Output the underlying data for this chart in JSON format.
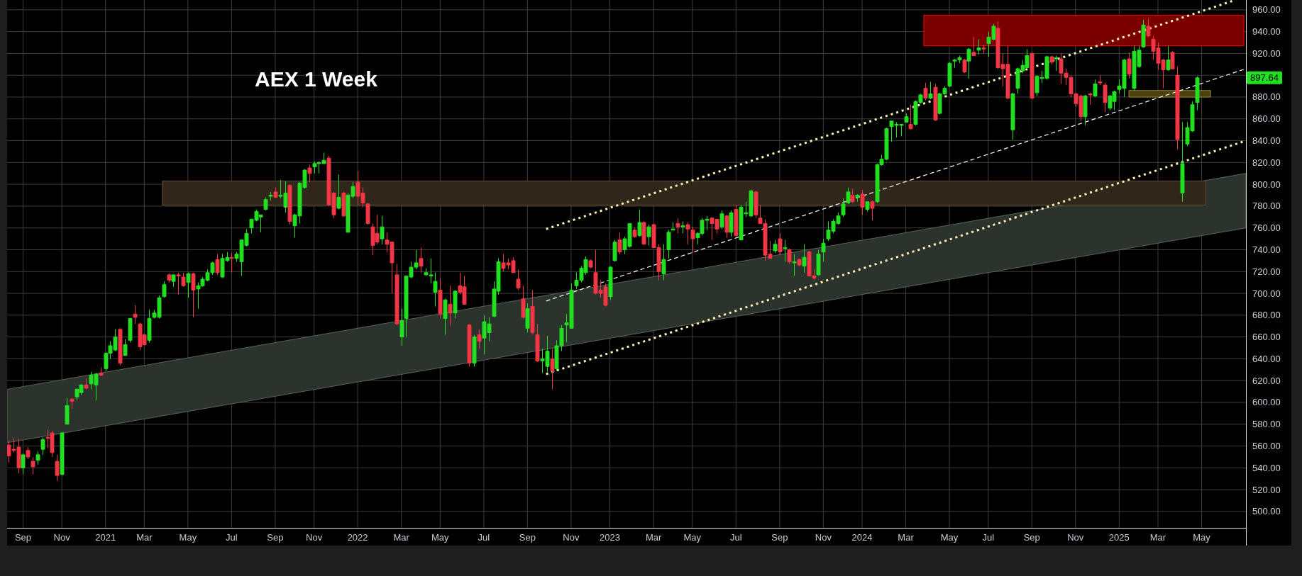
{
  "chart_data": {
    "type": "candlestick",
    "title": "AEX 1 Week",
    "x": [
      "2020-08-17",
      "2020-08-24",
      "2020-08-31",
      "2020-09-07",
      "2020-09-14",
      "2020-09-21",
      "2020-09-28",
      "2020-10-05",
      "2020-10-12",
      "2020-10-19",
      "2020-10-26",
      "2020-11-02",
      "2020-11-09",
      "2020-11-16",
      "2020-11-23",
      "2020-11-30",
      "2020-12-07",
      "2020-12-14",
      "2020-12-21",
      "2020-12-28",
      "2021-01-04",
      "2021-01-11",
      "2021-01-18",
      "2021-01-25",
      "2021-02-01",
      "2021-02-08",
      "2021-02-15",
      "2021-02-22",
      "2021-03-01",
      "2021-03-08",
      "2021-03-15",
      "2021-03-22",
      "2021-03-29",
      "2021-04-05",
      "2021-04-12",
      "2021-04-19",
      "2021-04-26",
      "2021-05-03",
      "2021-05-10",
      "2021-05-17",
      "2021-05-24",
      "2021-05-31",
      "2021-06-07",
      "2021-06-14",
      "2021-06-21",
      "2021-06-28",
      "2021-07-05",
      "2021-07-12",
      "2021-07-19",
      "2021-07-26",
      "2021-08-02",
      "2021-08-09",
      "2021-08-16",
      "2021-08-23",
      "2021-08-30",
      "2021-09-06",
      "2021-09-13",
      "2021-09-20",
      "2021-09-27",
      "2021-10-04",
      "2021-10-11",
      "2021-10-18",
      "2021-10-25",
      "2021-11-01",
      "2021-11-08",
      "2021-11-15",
      "2021-11-22",
      "2021-11-29",
      "2021-12-06",
      "2021-12-13",
      "2021-12-20",
      "2021-12-27",
      "2022-01-03",
      "2022-01-10",
      "2022-01-17",
      "2022-01-24",
      "2022-01-31",
      "2022-02-07",
      "2022-02-14",
      "2022-02-21",
      "2022-02-28",
      "2022-03-07",
      "2022-03-14",
      "2022-03-21",
      "2022-03-28",
      "2022-04-04",
      "2022-04-11",
      "2022-04-18",
      "2022-04-25",
      "2022-05-02",
      "2022-05-09",
      "2022-05-16",
      "2022-05-23",
      "2022-05-30",
      "2022-06-06",
      "2022-06-13",
      "2022-06-20",
      "2022-06-27",
      "2022-07-04",
      "2022-07-11",
      "2022-07-18",
      "2022-07-25",
      "2022-08-01",
      "2022-08-08",
      "2022-08-15",
      "2022-08-22",
      "2022-08-29",
      "2022-09-05",
      "2022-09-12",
      "2022-09-19",
      "2022-09-26",
      "2022-10-03",
      "2022-10-10",
      "2022-10-17",
      "2022-10-24",
      "2022-10-31",
      "2022-11-07",
      "2022-11-14",
      "2022-11-21",
      "2022-11-28",
      "2022-12-05",
      "2022-12-12",
      "2022-12-19",
      "2022-12-26",
      "2023-01-02",
      "2023-01-09",
      "2023-01-16",
      "2023-01-23",
      "2023-01-30",
      "2023-02-06",
      "2023-02-13",
      "2023-02-20",
      "2023-02-27",
      "2023-03-06",
      "2023-03-13",
      "2023-03-20",
      "2023-03-27",
      "2023-04-03",
      "2023-04-10",
      "2023-04-17",
      "2023-04-24",
      "2023-05-01",
      "2023-05-08",
      "2023-05-15",
      "2023-05-22",
      "2023-05-29",
      "2023-06-05",
      "2023-06-12",
      "2023-06-19",
      "2023-06-26",
      "2023-07-03",
      "2023-07-10",
      "2023-07-17",
      "2023-07-24",
      "2023-07-31",
      "2023-08-07",
      "2023-08-14",
      "2023-08-21",
      "2023-08-28",
      "2023-09-04",
      "2023-09-11",
      "2023-09-18",
      "2023-09-25",
      "2023-10-02",
      "2023-10-09",
      "2023-10-16",
      "2023-10-23",
      "2023-10-30",
      "2023-11-06",
      "2023-11-13",
      "2023-11-20",
      "2023-11-27",
      "2023-12-04",
      "2023-12-11",
      "2023-12-18",
      "2023-12-25",
      "2024-01-01",
      "2024-01-08",
      "2024-01-15",
      "2024-01-22",
      "2024-01-29",
      "2024-02-05",
      "2024-02-12",
      "2024-02-19",
      "2024-02-26",
      "2024-03-04",
      "2024-03-11",
      "2024-03-18",
      "2024-03-25",
      "2024-04-01",
      "2024-04-08",
      "2024-04-15",
      "2024-04-22",
      "2024-04-29",
      "2024-05-06",
      "2024-05-13",
      "2024-05-20",
      "2024-05-27",
      "2024-06-03",
      "2024-06-10",
      "2024-06-17",
      "2024-06-24",
      "2024-07-01",
      "2024-07-08",
      "2024-07-15",
      "2024-07-22",
      "2024-07-29",
      "2024-08-05",
      "2024-08-12",
      "2024-08-19",
      "2024-08-26",
      "2024-09-02",
      "2024-09-09",
      "2024-09-16",
      "2024-09-23",
      "2024-09-30",
      "2024-10-07",
      "2024-10-14",
      "2024-10-21",
      "2024-10-28",
      "2024-11-04",
      "2024-11-11",
      "2024-11-18",
      "2024-11-25",
      "2024-12-02",
      "2024-12-09",
      "2024-12-16",
      "2024-12-23",
      "2024-12-30",
      "2025-01-06",
      "2025-01-13",
      "2025-01-20",
      "2025-01-27",
      "2025-02-03",
      "2025-02-10",
      "2025-02-17",
      "2025-02-24",
      "2025-03-03",
      "2025-03-10",
      "2025-03-17",
      "2025-03-24",
      "2025-03-31",
      "2025-04-07",
      "2025-04-14",
      "2025-04-21",
      "2025-04-28"
    ],
    "ohlc": [
      [
        561,
        565,
        545,
        551
      ],
      [
        557,
        567,
        554,
        556
      ],
      [
        559,
        567,
        535,
        540
      ],
      [
        540,
        553,
        534,
        552
      ],
      [
        556,
        559,
        548,
        550
      ],
      [
        546,
        550,
        534,
        541
      ],
      [
        547,
        555,
        543,
        552
      ],
      [
        557,
        568,
        552,
        566
      ],
      [
        568,
        575,
        558,
        567
      ],
      [
        572,
        574,
        550,
        554
      ],
      [
        546,
        552,
        528,
        533
      ],
      [
        534,
        573,
        533,
        572
      ],
      [
        580,
        604,
        580,
        597
      ],
      [
        603,
        604,
        594,
        601
      ],
      [
        605,
        613,
        602,
        612
      ],
      [
        609,
        617,
        607,
        616
      ],
      [
        616,
        622,
        612,
        613
      ],
      [
        617,
        628,
        612,
        625
      ],
      [
        616,
        627,
        602,
        626
      ],
      [
        627,
        632,
        624,
        625
      ],
      [
        631,
        646,
        629,
        645
      ],
      [
        645,
        656,
        640,
        652
      ],
      [
        648,
        667,
        647,
        660
      ],
      [
        667,
        668,
        634,
        636
      ],
      [
        643,
        658,
        643,
        653
      ],
      [
        657,
        677,
        655,
        677
      ],
      [
        681,
        689,
        672,
        678
      ],
      [
        672,
        673,
        648,
        651
      ],
      [
        662,
        663,
        652,
        653
      ],
      [
        657,
        685,
        655,
        677
      ],
      [
        678,
        685,
        677,
        682
      ],
      [
        678,
        698,
        677,
        696
      ],
      [
        697,
        711,
        696,
        708
      ],
      [
        717,
        718,
        710,
        712
      ],
      [
        711,
        717,
        706,
        717
      ],
      [
        717,
        719,
        699,
        716
      ],
      [
        715,
        719,
        706,
        707
      ],
      [
        710,
        719,
        696,
        718
      ],
      [
        718,
        719,
        678,
        703
      ],
      [
        704,
        710,
        686,
        707
      ],
      [
        707,
        715,
        706,
        713
      ],
      [
        712,
        722,
        711,
        719
      ],
      [
        719,
        729,
        717,
        728
      ],
      [
        731,
        736,
        717,
        719
      ],
      [
        715,
        736,
        714,
        732
      ],
      [
        730,
        738,
        729,
        733
      ],
      [
        733,
        737,
        719,
        732
      ],
      [
        732,
        738,
        729,
        736
      ],
      [
        729,
        749,
        716,
        749
      ],
      [
        744,
        759,
        743,
        755
      ],
      [
        760,
        768,
        755,
        768
      ],
      [
        767,
        777,
        766,
        775
      ],
      [
        770,
        772,
        756,
        772
      ],
      [
        777,
        788,
        776,
        786
      ],
      [
        789,
        793,
        785,
        790
      ],
      [
        793,
        797,
        788,
        788
      ],
      [
        789,
        804,
        787,
        790
      ],
      [
        779,
        803,
        774,
        792
      ],
      [
        799,
        800,
        763,
        766
      ],
      [
        762,
        773,
        751,
        772
      ],
      [
        771,
        802,
        764,
        801
      ],
      [
        797,
        814,
        796,
        813
      ],
      [
        815,
        818,
        802,
        810
      ],
      [
        816,
        821,
        810,
        819
      ],
      [
        819,
        821,
        810,
        820
      ],
      [
        819,
        829,
        819,
        822
      ],
      [
        824,
        826,
        780,
        781
      ],
      [
        792,
        793,
        769,
        772
      ],
      [
        778,
        809,
        777,
        788
      ],
      [
        792,
        793,
        770,
        771
      ],
      [
        756,
        792,
        756,
        790
      ],
      [
        789,
        802,
        787,
        798
      ],
      [
        802,
        812,
        781,
        789
      ],
      [
        792,
        797,
        779,
        783
      ],
      [
        782,
        783,
        763,
        764
      ],
      [
        761,
        764,
        735,
        744
      ],
      [
        755,
        772,
        745,
        747
      ],
      [
        750,
        771,
        745,
        761
      ],
      [
        749,
        756,
        738,
        745
      ],
      [
        747,
        747,
        700,
        728
      ],
      [
        717,
        727,
        671,
        672
      ],
      [
        660,
        686,
        652,
        675
      ],
      [
        677,
        716,
        660,
        716
      ],
      [
        715,
        729,
        714,
        724
      ],
      [
        724,
        740,
        722,
        728
      ],
      [
        732,
        742,
        719,
        725
      ],
      [
        717,
        723,
        716,
        719
      ],
      [
        716,
        732,
        709,
        717
      ],
      [
        701,
        719,
        688,
        711
      ],
      [
        703,
        714,
        677,
        681
      ],
      [
        677,
        695,
        662,
        694
      ],
      [
        690,
        707,
        670,
        682
      ],
      [
        682,
        703,
        677,
        702
      ],
      [
        707,
        719,
        699,
        701
      ],
      [
        706,
        716,
        690,
        690
      ],
      [
        671,
        672,
        633,
        636
      ],
      [
        636,
        662,
        633,
        660
      ],
      [
        662,
        667,
        649,
        656
      ],
      [
        659,
        680,
        644,
        674
      ],
      [
        664,
        678,
        656,
        672
      ],
      [
        679,
        711,
        678,
        704
      ],
      [
        702,
        732,
        699,
        729
      ],
      [
        728,
        736,
        720,
        723
      ],
      [
        728,
        732,
        722,
        726
      ],
      [
        730,
        733,
        719,
        719
      ],
      [
        713,
        722,
        703,
        705
      ],
      [
        695,
        707,
        677,
        678
      ],
      [
        668,
        691,
        664,
        686
      ],
      [
        688,
        703,
        662,
        664
      ],
      [
        662,
        672,
        637,
        638
      ],
      [
        638,
        649,
        627,
        640
      ],
      [
        633,
        661,
        628,
        647
      ],
      [
        640,
        649,
        612,
        629
      ],
      [
        631,
        657,
        629,
        652
      ],
      [
        652,
        671,
        647,
        668
      ],
      [
        671,
        681,
        655,
        673
      ],
      [
        668,
        709,
        668,
        703
      ],
      [
        707,
        719,
        704,
        712
      ],
      [
        712,
        725,
        710,
        723
      ],
      [
        719,
        734,
        717,
        731
      ],
      [
        730,
        731,
        723,
        724
      ],
      [
        719,
        740,
        699,
        700
      ],
      [
        703,
        712,
        696,
        700
      ],
      [
        706,
        709,
        688,
        689
      ],
      [
        697,
        725,
        694,
        724
      ],
      [
        730,
        749,
        729,
        747
      ],
      [
        749,
        756,
        736,
        738
      ],
      [
        740,
        752,
        736,
        750
      ],
      [
        743,
        764,
        742,
        764
      ],
      [
        758,
        760,
        751,
        752
      ],
      [
        753,
        777,
        752,
        765
      ],
      [
        765,
        766,
        745,
        745
      ],
      [
        752,
        763,
        744,
        761
      ],
      [
        763,
        764,
        742,
        742
      ],
      [
        742,
        745,
        712,
        720
      ],
      [
        718,
        745,
        712,
        731
      ],
      [
        740,
        758,
        732,
        756
      ],
      [
        758,
        765,
        758,
        759
      ],
      [
        764,
        769,
        755,
        761
      ],
      [
        761,
        766,
        755,
        762
      ],
      [
        763,
        765,
        745,
        759
      ],
      [
        758,
        761,
        737,
        750
      ],
      [
        751,
        756,
        745,
        755
      ],
      [
        755,
        769,
        753,
        767
      ],
      [
        767,
        771,
        758,
        768
      ],
      [
        769,
        770,
        749,
        764
      ],
      [
        768,
        768,
        755,
        759
      ],
      [
        761,
        776,
        759,
        773
      ],
      [
        771,
        772,
        751,
        756
      ],
      [
        756,
        776,
        752,
        774
      ],
      [
        777,
        781,
        752,
        753
      ],
      [
        749,
        781,
        749,
        779
      ],
      [
        773,
        784,
        770,
        774
      ],
      [
        771,
        795,
        770,
        794
      ],
      [
        793,
        794,
        769,
        772
      ],
      [
        769,
        781,
        764,
        764
      ],
      [
        764,
        768,
        730,
        735
      ],
      [
        736,
        748,
        732,
        732
      ],
      [
        739,
        749,
        737,
        745
      ],
      [
        750,
        755,
        735,
        738
      ],
      [
        741,
        749,
        729,
        742
      ],
      [
        740,
        741,
        727,
        729
      ],
      [
        728,
        736,
        716,
        729
      ],
      [
        731,
        732,
        725,
        726
      ],
      [
        725,
        745,
        719,
        733
      ],
      [
        738,
        739,
        716,
        716
      ],
      [
        716,
        722,
        712,
        714
      ],
      [
        717,
        740,
        716,
        736
      ],
      [
        738,
        750,
        729,
        746
      ],
      [
        750,
        766,
        748,
        758
      ],
      [
        757,
        768,
        755,
        766
      ],
      [
        764,
        774,
        763,
        771
      ],
      [
        772,
        787,
        770,
        782
      ],
      [
        783,
        797,
        782,
        793
      ],
      [
        790,
        796,
        783,
        784
      ],
      [
        788,
        791,
        784,
        790
      ],
      [
        791,
        795,
        772,
        779
      ],
      [
        777,
        784,
        775,
        784
      ],
      [
        784,
        785,
        767,
        778
      ],
      [
        784,
        819,
        783,
        818
      ],
      [
        818,
        827,
        817,
        823
      ],
      [
        823,
        852,
        822,
        851
      ],
      [
        853,
        858,
        839,
        858
      ],
      [
        854,
        857,
        843,
        855
      ],
      [
        854,
        855,
        844,
        855
      ],
      [
        857,
        865,
        857,
        862
      ],
      [
        855,
        873,
        850,
        851
      ],
      [
        855,
        877,
        854,
        876
      ],
      [
        875,
        883,
        874,
        882
      ],
      [
        888,
        893,
        877,
        879
      ],
      [
        879,
        894,
        878,
        883
      ],
      [
        889,
        892,
        858,
        859
      ],
      [
        865,
        884,
        864,
        883
      ],
      [
        883,
        890,
        882,
        888
      ],
      [
        890,
        912,
        889,
        911
      ],
      [
        913,
        915,
        907,
        914
      ],
      [
        914,
        918,
        911,
        916
      ],
      [
        914,
        915,
        902,
        903
      ],
      [
        913,
        925,
        897,
        924
      ],
      [
        921,
        935,
        918,
        918
      ],
      [
        923,
        933,
        919,
        925
      ],
      [
        925,
        928,
        920,
        924
      ],
      [
        929,
        940,
        917,
        935
      ],
      [
        933,
        947,
        932,
        945
      ],
      [
        943,
        949,
        906,
        907
      ],
      [
        910,
        920,
        890,
        906
      ],
      [
        910,
        927,
        878,
        879
      ],
      [
        850,
        884,
        841,
        883
      ],
      [
        888,
        907,
        883,
        906
      ],
      [
        904,
        914,
        902,
        909
      ],
      [
        907,
        924,
        906,
        918
      ],
      [
        920,
        921,
        878,
        879
      ],
      [
        884,
        900,
        881,
        899
      ],
      [
        897,
        904,
        893,
        898
      ],
      [
        897,
        918,
        896,
        917
      ],
      [
        917,
        918,
        910,
        912
      ],
      [
        915,
        918,
        904,
        916
      ],
      [
        915,
        920,
        892,
        902
      ],
      [
        902,
        906,
        891,
        898
      ],
      [
        898,
        900,
        880,
        883
      ],
      [
        883,
        884,
        871,
        874
      ],
      [
        881,
        882,
        858,
        862
      ],
      [
        862,
        882,
        854,
        881
      ],
      [
        883,
        884,
        873,
        882
      ],
      [
        881,
        896,
        880,
        892
      ],
      [
        894,
        900,
        891,
        893
      ],
      [
        891,
        893,
        866,
        875
      ],
      [
        870,
        882,
        868,
        881
      ],
      [
        876,
        886,
        868,
        885
      ],
      [
        887,
        896,
        883,
        890
      ],
      [
        888,
        915,
        880,
        914
      ],
      [
        915,
        921,
        897,
        901
      ],
      [
        888,
        927,
        886,
        922
      ],
      [
        908,
        927,
        907,
        923
      ],
      [
        926,
        951,
        925,
        946
      ],
      [
        945,
        952,
        935,
        936
      ],
      [
        933,
        936,
        914,
        922
      ],
      [
        925,
        930,
        905,
        911
      ],
      [
        914,
        915,
        888,
        905
      ],
      [
        905,
        927,
        904,
        914
      ],
      [
        921,
        922,
        905,
        906
      ],
      [
        900,
        908,
        832,
        841
      ],
      [
        792,
        857,
        784,
        819
      ],
      [
        837,
        857,
        835,
        852
      ],
      [
        849,
        876,
        848,
        873
      ],
      [
        875,
        899,
        868,
        897.64
      ]
    ],
    "colors": [
      "#f23645",
      "#f23645",
      "#f23645",
      "#21e021",
      "#f23645",
      "#f23645",
      "#21e021",
      "#21e021",
      "#f23645",
      "#f23645",
      "#f23645",
      "#21e021",
      "#21e021",
      "#f23645",
      "#21e021",
      "#21e021",
      "#f23645",
      "#21e021",
      "#21e021",
      "#f23645",
      "#21e021",
      "#21e021",
      "#21e021",
      "#f23645",
      "#21e021",
      "#21e021",
      "#f23645",
      "#f23645",
      "#f23645",
      "#21e021",
      "#21e021",
      "#21e021",
      "#21e021",
      "#f23645",
      "#21e021",
      "#f23645",
      "#f23645",
      "#21e021",
      "#f23645",
      "#21e021",
      "#21e021",
      "#21e021",
      "#21e021",
      "#f23645",
      "#21e021",
      "#21e021",
      "#f23645",
      "#21e021",
      "#21e021",
      "#21e021",
      "#21e021",
      "#21e021",
      "#21e021",
      "#21e021",
      "#21e021",
      "#f23645",
      "#21e021",
      "#21e021",
      "#f23645",
      "#21e021",
      "#21e021",
      "#21e021",
      "#f23645",
      "#21e021",
      "#21e021",
      "#21e021",
      "#f23645",
      "#f23645",
      "#21e021",
      "#f23645",
      "#21e021",
      "#21e021",
      "#f23645",
      "#f23645",
      "#f23645",
      "#f23645",
      "#f23645",
      "#21e021",
      "#f23645",
      "#f23645",
      "#f23645",
      "#21e021",
      "#21e021",
      "#21e021",
      "#21e021",
      "#f23645",
      "#21e021",
      "#21e021",
      "#21e021",
      "#f23645",
      "#21e021",
      "#f23645",
      "#21e021",
      "#f23645",
      "#f23645",
      "#f23645",
      "#21e021",
      "#f23645",
      "#21e021",
      "#21e021",
      "#21e021",
      "#21e021",
      "#f23645",
      "#f23645",
      "#f23645",
      "#f23645",
      "#f23645",
      "#21e021",
      "#f23645",
      "#f23645",
      "#21e021",
      "#21e021",
      "#f23645",
      "#21e021",
      "#21e021",
      "#21e021",
      "#21e021",
      "#21e021",
      "#21e021",
      "#21e021",
      "#f23645",
      "#f23645",
      "#f23645",
      "#f23645",
      "#21e021",
      "#21e021",
      "#f23645",
      "#21e021",
      "#21e021",
      "#f23645",
      "#21e021",
      "#f23645",
      "#21e021",
      "#f23645",
      "#f23645",
      "#21e021",
      "#21e021",
      "#21e021",
      "#f23645",
      "#21e021",
      "#f23645",
      "#f23645",
      "#21e021",
      "#21e021",
      "#21e021",
      "#f23645",
      "#f23645",
      "#21e021",
      "#f23645",
      "#21e021",
      "#f23645",
      "#21e021",
      "#21e021",
      "#21e021",
      "#f23645",
      "#f23645",
      "#f23645",
      "#f23645",
      "#21e021",
      "#f23645",
      "#21e021",
      "#f23645",
      "#21e021",
      "#f23645",
      "#21e021",
      "#f23645",
      "#f23645",
      "#21e021",
      "#21e021",
      "#21e021",
      "#21e021",
      "#21e021",
      "#21e021",
      "#21e021",
      "#f23645",
      "#21e021",
      "#f23645",
      "#21e021",
      "#f23645",
      "#21e021",
      "#21e021",
      "#21e021",
      "#21e021",
      "#21e021",
      "#21e021",
      "#21e021",
      "#f23645",
      "#21e021",
      "#21e021",
      "#f23645",
      "#21e021",
      "#f23645",
      "#21e021",
      "#21e021",
      "#21e021",
      "#21e021",
      "#21e021",
      "#f23645",
      "#21e021",
      "#f23645",
      "#21e021",
      "#f23645",
      "#21e021",
      "#21e021",
      "#f23645",
      "#f23645",
      "#f23645",
      "#21e021",
      "#21e021",
      "#21e021",
      "#21e021",
      "#f23645",
      "#21e021",
      "#21e021",
      "#21e021",
      "#f23645",
      "#21e021",
      "#f23645",
      "#f23645",
      "#f23645",
      "#f23645",
      "#f23645",
      "#21e021",
      "#f23645",
      "#21e021",
      "#f23645",
      "#f23645",
      "#21e021",
      "#21e021",
      "#21e021",
      "#21e021",
      "#f23645",
      "#21e021",
      "#21e021",
      "#21e021",
      "#f23645",
      "#f23645",
      "#f23645",
      "#f23645",
      "#21e021",
      "#f23645",
      "#f23645",
      "#21e021",
      "#21e021",
      "#21e021",
      "#21e021"
    ],
    "series": [
      {
        "type": "line",
        "x": [
          "2020-08-15",
          "2025-07-08"
        ],
        "values": [
          null,
          null
        ],
        "lower": [
          563,
          760
        ],
        "upper": [
          612,
          810
        ],
        "color": "#2c322c"
      },
      {
        "type": "line",
        "x": [
          "2021-03-27",
          "2025-05-11"
        ],
        "values": [
          null,
          null
        ],
        "lower": [
          781,
          781
        ],
        "upper": [
          803,
          803
        ],
        "color": "#30261a"
      },
      {
        "type": "line",
        "x": [
          "2024-03-30",
          "2025-07-05"
        ],
        "values": [
          null,
          null
        ],
        "lower": [
          927,
          927
        ],
        "upper": [
          955,
          955
        ],
        "color": "#7a0000"
      },
      {
        "type": "line",
        "x": [
          "2025-01-20",
          "2025-05-18"
        ],
        "values": [
          null,
          null
        ],
        "lower": [
          880,
          880
        ],
        "upper": [
          886,
          886
        ],
        "color": "#4a4010"
      },
      {
        "type": "line",
        "x": [
          "2022-10-02",
          "2025-06-18"
        ],
        "values": [
          759,
          968
        ],
        "color": "#fff5b0",
        "line_style": "dotted"
      },
      {
        "type": "line",
        "x": [
          "2022-10-02",
          "2025-07-08"
        ],
        "values": [
          693,
          906
        ],
        "color": "#ffffff",
        "line_style": "dashed"
      },
      {
        "type": "line",
        "x": [
          "2022-10-02",
          "2025-07-08"
        ],
        "values": [
          626,
          840
        ],
        "color": "#fff5b0",
        "line_style": "dotted"
      }
    ],
    "xlim": [
      "2020-08-15",
      "2025-07-08"
    ],
    "xticks": [
      {
        "value": "2020-09-07",
        "label": "Sep"
      },
      {
        "value": "2020-11-02",
        "label": "Nov"
      },
      {
        "value": "2021-01-04",
        "label": "2021"
      },
      {
        "value": "2021-03-01",
        "label": "Mar"
      },
      {
        "value": "2021-05-03",
        "label": "May"
      },
      {
        "value": "2021-07-05",
        "label": "Jul"
      },
      {
        "value": "2021-09-06",
        "label": "Sep"
      },
      {
        "value": "2021-11-01",
        "label": "Nov"
      },
      {
        "value": "2022-01-03",
        "label": "2022"
      },
      {
        "value": "2022-03-07",
        "label": "Mar"
      },
      {
        "value": "2022-05-02",
        "label": "May"
      },
      {
        "value": "2022-07-04",
        "label": "Jul"
      },
      {
        "value": "2022-09-05",
        "label": "Sep"
      },
      {
        "value": "2022-11-07",
        "label": "Nov"
      },
      {
        "value": "2023-01-02",
        "label": "2023"
      },
      {
        "value": "2023-03-06",
        "label": "Mar"
      },
      {
        "value": "2023-05-01",
        "label": "May"
      },
      {
        "value": "2023-07-03",
        "label": "Jul"
      },
      {
        "value": "2023-09-04",
        "label": "Sep"
      },
      {
        "value": "2023-11-06",
        "label": "Nov"
      },
      {
        "value": "2024-01-01",
        "label": "2024"
      },
      {
        "value": "2024-03-04",
        "label": "Mar"
      },
      {
        "value": "2024-05-06",
        "label": "May"
      },
      {
        "value": "2024-07-01",
        "label": "Jul"
      },
      {
        "value": "2024-09-02",
        "label": "Sep"
      },
      {
        "value": "2024-11-04",
        "label": "Nov"
      },
      {
        "value": "2025-01-06",
        "label": "2025"
      },
      {
        "value": "2025-03-03",
        "label": "Mar"
      },
      {
        "value": "2025-05-05",
        "label": "May"
      }
    ],
    "ylim": [
      485,
      969
    ],
    "yticks": [
      {
        "value": 500,
        "label": "500.00"
      },
      {
        "value": 520,
        "label": "520.00"
      },
      {
        "value": 540,
        "label": "540.00"
      },
      {
        "value": 560,
        "label": "560.00"
      },
      {
        "value": 580,
        "label": "580.00"
      },
      {
        "value": 600,
        "label": "600.00"
      },
      {
        "value": 620,
        "label": "620.00"
      },
      {
        "value": 640,
        "label": "640.00"
      },
      {
        "value": 660,
        "label": "660.00"
      },
      {
        "value": 680,
        "label": "680.00"
      },
      {
        "value": 700,
        "label": "700.00"
      },
      {
        "value": 720,
        "label": "720.00"
      },
      {
        "value": 740,
        "label": "740.00"
      },
      {
        "value": 760,
        "label": "760.00"
      },
      {
        "value": 780,
        "label": "780.00"
      },
      {
        "value": 800,
        "label": "800.00"
      },
      {
        "value": 820,
        "label": "820.00"
      },
      {
        "value": 840,
        "label": "840.00"
      },
      {
        "value": 860,
        "label": "860.00"
      },
      {
        "value": 880,
        "label": "880.00"
      },
      {
        "value": 900,
        "label": null
      },
      {
        "value": 920,
        "label": "920.00"
      },
      {
        "value": 940,
        "label": "940.00"
      },
      {
        "value": 960,
        "label": "960.00"
      }
    ],
    "grid": true,
    "annotations": [
      "897.64"
    ]
  }
}
